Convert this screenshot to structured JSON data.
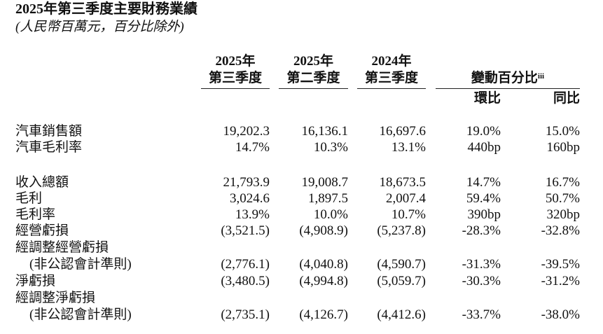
{
  "header": {
    "title": "2025年第三季度主要財務業績",
    "subtitle": "(人民幣百萬元，百分比除外)"
  },
  "table": {
    "columns": [
      {
        "year": "2025年",
        "period": "第三季度"
      },
      {
        "year": "2025年",
        "period": "第二季度"
      },
      {
        "year": "2024年",
        "period": "第三季度"
      }
    ],
    "change_header": {
      "label": "變動百分比",
      "note": "iii",
      "sub": [
        "環比",
        "同比"
      ]
    },
    "rows": [
      {
        "label": [
          "汽車銷售額"
        ],
        "cells": [
          "19,202.3",
          "16,136.1",
          "16,697.6",
          "19.0%",
          "15.0%"
        ]
      },
      {
        "label": [
          "汽車毛利率"
        ],
        "cells": [
          "14.7%",
          "10.3%",
          "13.1%",
          "440bp",
          "160bp"
        ]
      },
      {
        "label": [
          "收入總額"
        ],
        "cells": [
          "21,793.9",
          "19,008.7",
          "18,673.5",
          "14.7%",
          "16.7%"
        ]
      },
      {
        "label": [
          "毛利"
        ],
        "cells": [
          "3,024.6",
          "1,897.5",
          "2,007.4",
          "59.4%",
          "50.7%"
        ]
      },
      {
        "label": [
          "毛利率"
        ],
        "cells": [
          "13.9%",
          "10.0%",
          "10.7%",
          "390bp",
          "320bp"
        ]
      },
      {
        "label": [
          "經營虧損"
        ],
        "cells": [
          "(3,521.5)",
          "(4,908.9)",
          "(5,237.8)",
          "-28.3%",
          "-32.8%"
        ]
      },
      {
        "label": [
          "經調整經營虧損",
          "(非公認會計準則)"
        ],
        "cells": [
          "(2,776.1)",
          "(4,040.8)",
          "(4,590.7)",
          "-31.3%",
          "-39.5%"
        ]
      },
      {
        "label": [
          "淨虧損"
        ],
        "cells": [
          "(3,480.5)",
          "(4,994.8)",
          "(5,059.7)",
          "-30.3%",
          "-31.2%"
        ]
      },
      {
        "label": [
          "經調整淨虧損",
          "(非公認會計準則)"
        ],
        "cells": [
          "(2,735.1)",
          "(4,126.7)",
          "(4,412.6)",
          "-33.7%",
          "-38.0%"
        ]
      }
    ]
  }
}
